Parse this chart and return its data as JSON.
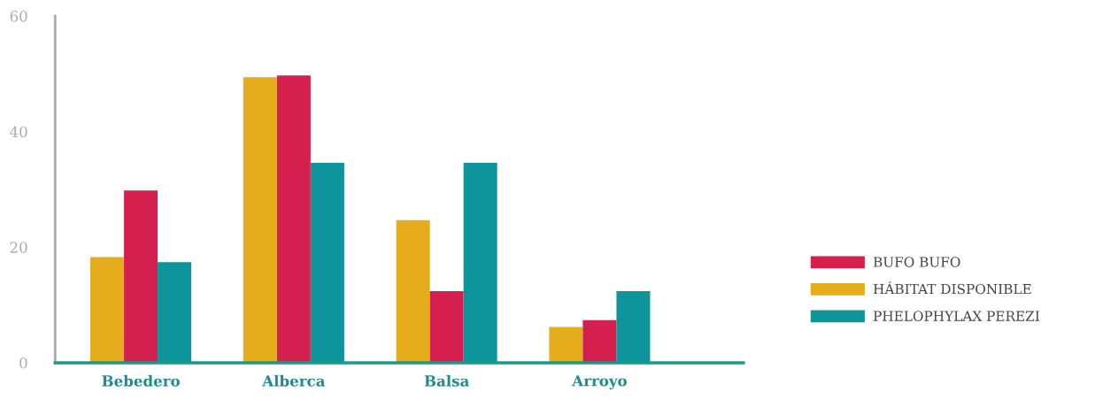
{
  "chart_data": {
    "type": "bar",
    "categories": [
      "Bebedero",
      "Alberca",
      "Balsa",
      "Arroyo"
    ],
    "series": [
      {
        "name": "HÁBITAT DISPONIBLE",
        "color": "#e5ac1b",
        "values": [
          18.3,
          49.4,
          24.7,
          6.2
        ]
      },
      {
        "name": "BUFO BUFO",
        "color": "#d5204f",
        "values": [
          29.8,
          49.7,
          12.4,
          7.4
        ]
      },
      {
        "name": "PHELOPHYLAX PEREZI",
        "color": "#0e959b",
        "values": [
          17.4,
          34.6,
          34.6,
          12.4
        ]
      }
    ],
    "ylim": [
      0,
      60
    ],
    "yticks": [
      0,
      20,
      40,
      60
    ],
    "grid": false,
    "legend": "right"
  }
}
